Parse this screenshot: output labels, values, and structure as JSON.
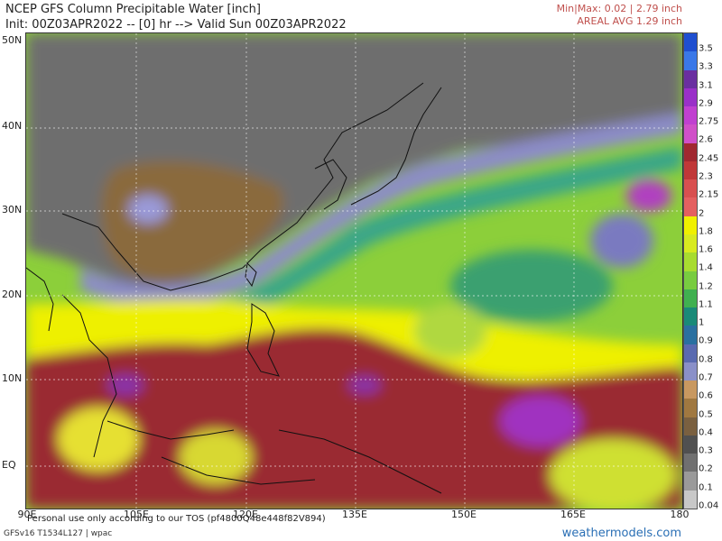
{
  "header": {
    "title": "NCEP GFS Column Precipitable Water [inch]",
    "init_line": "Init: 00Z03APR2022 -- [0] hr --> Valid Sun 00Z03APR2022",
    "minmax": "Min|Max: 0.02 | 2.79 inch",
    "areal_avg": "AREAL AVG 1.29 inch"
  },
  "lat_labels": [
    "50N",
    "40N",
    "30N",
    "20N",
    "10N",
    "EQ"
  ],
  "lon_labels": [
    "90E",
    "105E",
    "120E",
    "135E",
    "150E",
    "165E",
    "180"
  ],
  "colorbar": {
    "labels": [
      "3.5",
      "3.3",
      "3.1",
      "2.9",
      "2.75",
      "2.6",
      "2.45",
      "2.3",
      "2.15",
      "2",
      "1.8",
      "1.6",
      "1.4",
      "1.2",
      "1.1",
      "1",
      "0.9",
      "0.8",
      "0.7",
      "0.6",
      "0.5",
      "0.4",
      "0.3",
      "0.2",
      "0.1",
      "0.04"
    ],
    "colors": [
      "#1f4fd0",
      "#3a78e8",
      "#6a2fa0",
      "#9a30c8",
      "#c040d0",
      "#d050c8",
      "#a02830",
      "#c03838",
      "#d85050",
      "#e46060",
      "#f0f000",
      "#d8ea20",
      "#a8dc30",
      "#78cc40",
      "#40b050",
      "#1a8a78",
      "#2a70a0",
      "#5a6ab0",
      "#8a90c8",
      "#c89860",
      "#a07840",
      "#7a6040",
      "#505050",
      "#707070",
      "#9a9a9a",
      "#c8c8c8"
    ]
  },
  "footer": {
    "note": "Personal use only according to our TOS (pf4800Q48e448f82V894)",
    "model": "GFSv16 T1534L127 | wpac",
    "site": "weathermodels.com"
  }
}
